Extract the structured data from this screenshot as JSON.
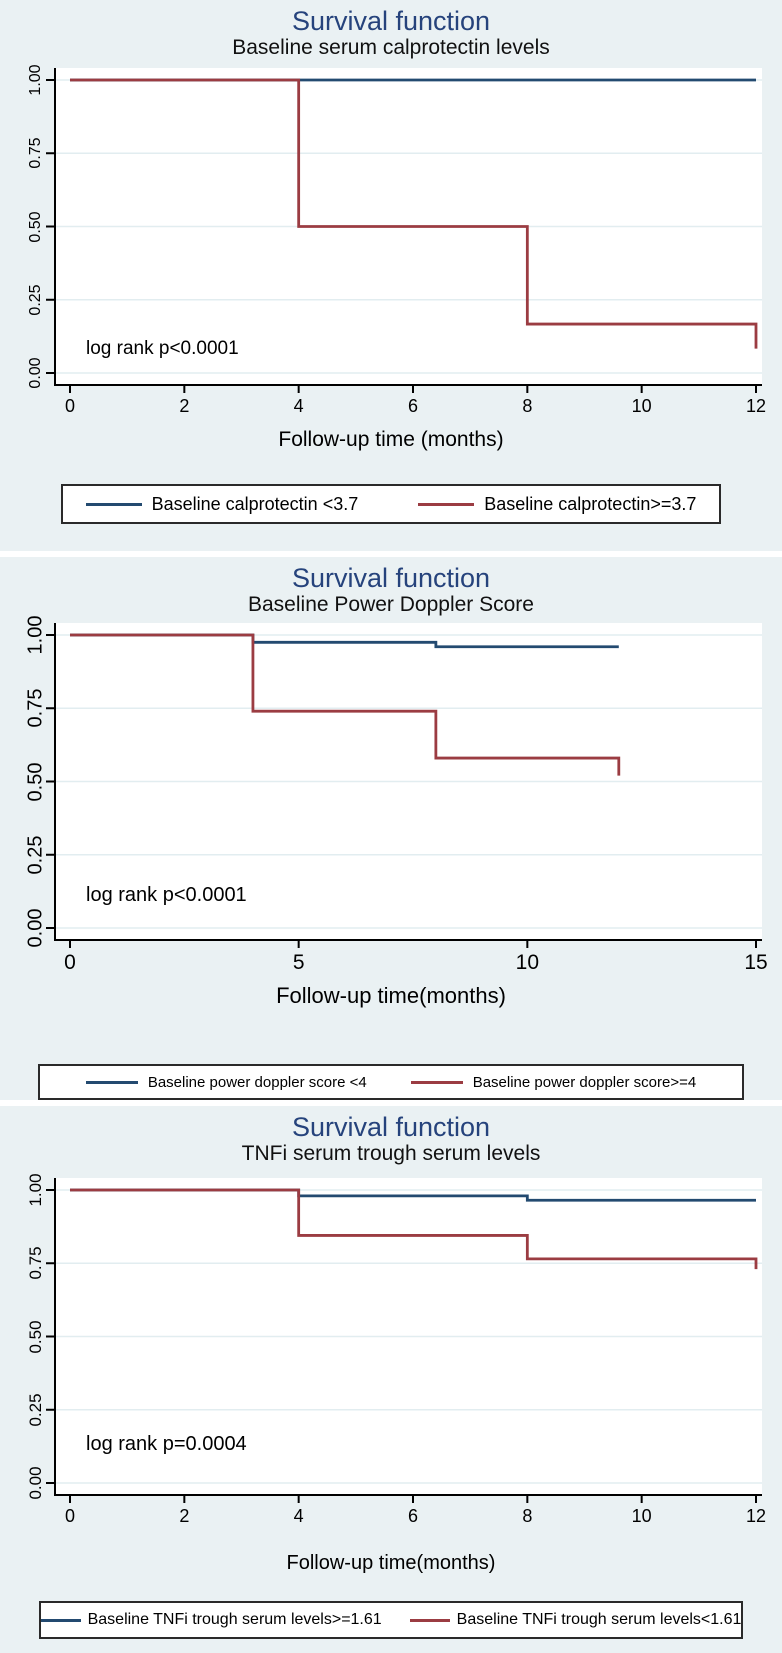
{
  "page": {
    "background": "#ffffff",
    "panel_background": "#eaf1f3",
    "colors": {
      "title_navy": "#26437c",
      "curve_navy": "#234a70",
      "curve_maroon": "#9b3c42",
      "plot_background": "#ffffff",
      "gridline": "#e2edf0",
      "axis": "#000000"
    }
  },
  "chart_data": [
    {
      "type": "line",
      "subtype": "kaplan-meier-step",
      "title": "Survival function",
      "subtitle": "Baseline serum calprotectin levels",
      "xlabel": "Follow-up time (months)",
      "annotation": "log rank p<0.0001",
      "xlim": [
        0,
        12
      ],
      "ylim": [
        0,
        1
      ],
      "grid": true,
      "legend_position": "bottom",
      "xticks": [
        {
          "v": 0,
          "label": "0"
        },
        {
          "v": 2,
          "label": "2"
        },
        {
          "v": 4,
          "label": "4"
        },
        {
          "v": 6,
          "label": "6"
        },
        {
          "v": 8,
          "label": "8"
        },
        {
          "v": 10,
          "label": "10"
        },
        {
          "v": 12,
          "label": "12"
        }
      ],
      "yticks": [
        {
          "v": 1,
          "label": "1.00"
        },
        {
          "v": 0.75,
          "label": "0.75"
        },
        {
          "v": 0.5,
          "label": "0.50"
        },
        {
          "v": 0.25,
          "label": "0.25"
        },
        {
          "v": 0,
          "label": "0.00"
        }
      ],
      "series": [
        {
          "name": "Baseline calprotectin <3.7",
          "color": "#234a70",
          "points": [
            [
              0,
              1
            ],
            [
              12,
              1
            ]
          ]
        },
        {
          "name": "Baseline calprotectin>=3.7",
          "color": "#9b3c42",
          "points": [
            [
              0,
              1
            ],
            [
              4,
              1
            ],
            [
              4,
              0.5
            ],
            [
              8,
              0.5
            ],
            [
              8,
              0.167
            ],
            [
              12,
              0.167
            ],
            [
              12,
              0.083
            ]
          ]
        }
      ]
    },
    {
      "type": "line",
      "subtype": "kaplan-meier-step",
      "title": "Survival function",
      "subtitle": "Baseline Power Doppler Score",
      "xlabel": "Follow-up time(months)",
      "annotation": "log rank p<0.0001",
      "xlim": [
        0,
        15
      ],
      "ylim": [
        0,
        1
      ],
      "grid": true,
      "legend_position": "bottom",
      "xticks": [
        {
          "v": 0,
          "label": "0"
        },
        {
          "v": 5,
          "label": "5"
        },
        {
          "v": 10,
          "label": "10"
        },
        {
          "v": 15,
          "label": "15"
        }
      ],
      "yticks": [
        {
          "v": 1,
          "label": "1.00"
        },
        {
          "v": 0.75,
          "label": "0.75"
        },
        {
          "v": 0.5,
          "label": "0.50"
        },
        {
          "v": 0.25,
          "label": "0.25"
        },
        {
          "v": 0,
          "label": "0.00"
        }
      ],
      "series": [
        {
          "name": "Baseline power doppler score <4",
          "color": "#234a70",
          "points": [
            [
              0,
              1
            ],
            [
              4,
              1
            ],
            [
              4,
              0.975
            ],
            [
              8,
              0.975
            ],
            [
              8,
              0.96
            ],
            [
              12,
              0.96
            ]
          ]
        },
        {
          "name": "Baseline power doppler score>=4",
          "color": "#9b3c42",
          "points": [
            [
              0,
              1
            ],
            [
              4,
              1
            ],
            [
              4,
              0.74
            ],
            [
              8,
              0.74
            ],
            [
              8,
              0.58
            ],
            [
              12,
              0.58
            ],
            [
              12,
              0.52
            ]
          ]
        }
      ]
    },
    {
      "type": "line",
      "subtype": "kaplan-meier-step",
      "title": "Survival function",
      "subtitle": "TNFi serum trough serum levels",
      "xlabel": "Follow-up time(months)",
      "annotation": "log rank p=0.0004",
      "xlim": [
        0,
        12
      ],
      "ylim": [
        0,
        1
      ],
      "grid": true,
      "legend_position": "bottom",
      "xticks": [
        {
          "v": 0,
          "label": "0"
        },
        {
          "v": 2,
          "label": "2"
        },
        {
          "v": 4,
          "label": "4"
        },
        {
          "v": 6,
          "label": "6"
        },
        {
          "v": 8,
          "label": "8"
        },
        {
          "v": 10,
          "label": "10"
        },
        {
          "v": 12,
          "label": "12"
        }
      ],
      "yticks": [
        {
          "v": 1,
          "label": "1.00"
        },
        {
          "v": 0.75,
          "label": "0.75"
        },
        {
          "v": 0.5,
          "label": "0.50"
        },
        {
          "v": 0.25,
          "label": "0.25"
        },
        {
          "v": 0,
          "label": "0.00"
        }
      ],
      "series": [
        {
          "name": "Baseline TNFi trough serum levels>=1.61",
          "color": "#234a70",
          "points": [
            [
              0,
              1
            ],
            [
              4,
              1
            ],
            [
              4,
              0.98
            ],
            [
              8,
              0.98
            ],
            [
              8,
              0.965
            ],
            [
              12,
              0.965
            ]
          ]
        },
        {
          "name": "Baseline TNFi trough serum levels<1.61",
          "color": "#9b3c42",
          "points": [
            [
              0,
              1
            ],
            [
              4,
              1
            ],
            [
              4,
              0.845
            ],
            [
              8,
              0.845
            ],
            [
              8,
              0.765
            ],
            [
              12,
              0.765
            ],
            [
              12,
              0.73
            ]
          ]
        }
      ]
    }
  ]
}
